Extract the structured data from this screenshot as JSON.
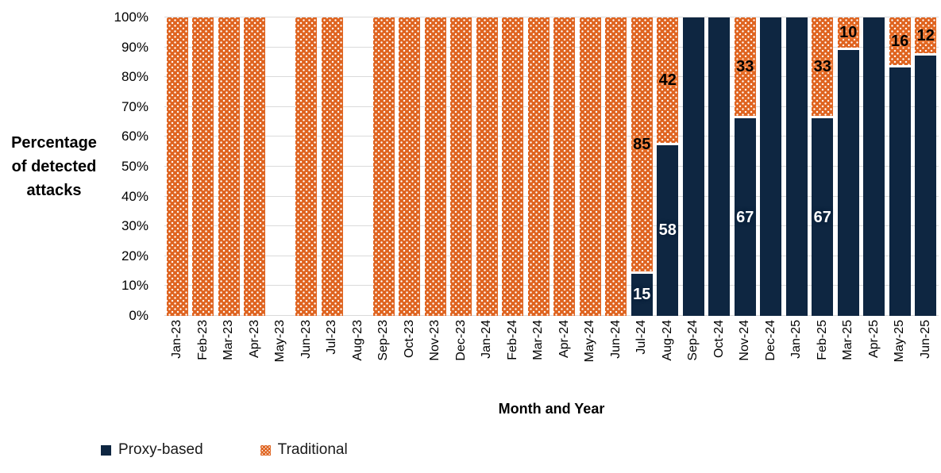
{
  "chart_data": {
    "type": "bar",
    "stacked": true,
    "xlabel": "Month and Year",
    "ylabel": "Percentage\nof detected\nattacks",
    "ylim": [
      0,
      100
    ],
    "ytick_step": 10,
    "ytick_labels": [
      "0%",
      "10%",
      "20%",
      "30%",
      "40%",
      "50%",
      "60%",
      "70%",
      "80%",
      "90%",
      "100%"
    ],
    "grid": true,
    "gridline_color": "#dadada",
    "legend_position": "bottom-left",
    "categories": [
      "Jan-23",
      "Feb-23",
      "Mar-23",
      "Apr-23",
      "May-23",
      "Jun-23",
      "Jul-23",
      "Aug-23",
      "Sep-23",
      "Oct-23",
      "Nov-23",
      "Dec-23",
      "Jan-24",
      "Feb-24",
      "Mar-24",
      "Apr-24",
      "May-24",
      "Jun-24",
      "Jul-24",
      "Aug-24",
      "Sep-24",
      "Oct-24",
      "Nov-24",
      "Dec-24",
      "Jan-25",
      "Feb-25",
      "Mar-25",
      "Apr-25",
      "May-25",
      "Jun-25"
    ],
    "series": [
      {
        "name": "Proxy-based",
        "color": "#0e2641",
        "pattern": "solid",
        "label_color": "#ffffff",
        "values": [
          0,
          0,
          0,
          0,
          null,
          0,
          0,
          null,
          0,
          0,
          0,
          0,
          0,
          0,
          0,
          0,
          0,
          0,
          15,
          58,
          100,
          100,
          67,
          100,
          100,
          67,
          90,
          100,
          84,
          88
        ],
        "labels": [
          "",
          "",
          "",
          "",
          "",
          "",
          "",
          "",
          "",
          "",
          "",
          "",
          "",
          "",
          "",
          "",
          "",
          "",
          "15",
          "58",
          "",
          "",
          "67",
          "",
          "",
          "67",
          "",
          "",
          "",
          ""
        ]
      },
      {
        "name": "Traditional",
        "color": "#df6420",
        "pattern": "white-dots",
        "label_color": "#000000",
        "values": [
          100,
          100,
          100,
          100,
          null,
          100,
          100,
          null,
          100,
          100,
          100,
          100,
          100,
          100,
          100,
          100,
          100,
          100,
          85,
          42,
          0,
          0,
          33,
          0,
          0,
          33,
          10,
          0,
          16,
          12
        ],
        "labels": [
          "",
          "",
          "",
          "",
          "",
          "",
          "",
          "",
          "",
          "",
          "",
          "",
          "",
          "",
          "",
          "",
          "",
          "",
          "85",
          "42",
          "",
          "",
          "33",
          "",
          "",
          "33",
          "10",
          "",
          "16",
          "12"
        ]
      }
    ]
  }
}
